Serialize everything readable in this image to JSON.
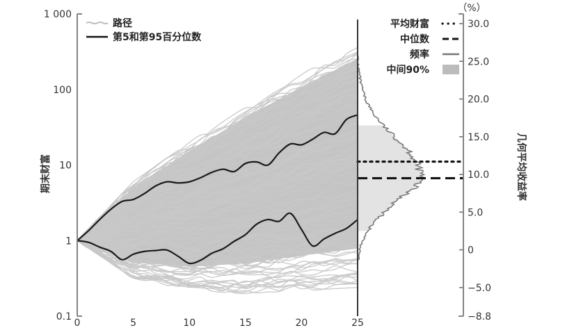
{
  "chart_data": {
    "type": "line",
    "title": "",
    "xlabel": "",
    "ylabel": "期末财富",
    "y2label": "几何平均收益率",
    "y2unit": "（%）",
    "xlim": [
      0,
      25
    ],
    "ylim": [
      0.1,
      1000
    ],
    "yscale": "log",
    "y2lim": [
      -8.8,
      30.0
    ],
    "x_ticks": [
      0,
      5,
      10,
      15,
      20,
      25
    ],
    "y_ticks": [
      {
        "value": 1000,
        "label": "1 000"
      },
      {
        "value": 100,
        "label": "100"
      },
      {
        "value": 10,
        "label": "10"
      },
      {
        "value": 1,
        "label": "1"
      },
      {
        "value": 0.1,
        "label": "0.1"
      }
    ],
    "y2_ticks": [
      {
        "value": 30.0,
        "label": "30.0"
      },
      {
        "value": 25.0,
        "label": "25.0"
      },
      {
        "value": 20.0,
        "label": "20.0"
      },
      {
        "value": 15.0,
        "label": "15.0"
      },
      {
        "value": 10.0,
        "label": "10.0"
      },
      {
        "value": 5.0,
        "label": "5.0"
      },
      {
        "value": 0,
        "label": "0"
      },
      {
        "value": -5.0,
        "label": "−5.0"
      },
      {
        "value": -8.8,
        "label": "−8.8"
      }
    ],
    "legend_left": [
      {
        "label": "路径",
        "style": "thin-gray"
      },
      {
        "label": "第5和第95百分位数",
        "style": "solid-black"
      }
    ],
    "legend_right": [
      {
        "label": "平均财富",
        "style": "dotted"
      },
      {
        "label": "中位数",
        "style": "dashed"
      },
      {
        "label": "频率",
        "style": "gray-line"
      },
      {
        "label": "中间90%",
        "style": "gray-fill"
      }
    ],
    "series": [
      {
        "name": "第95百分位数",
        "x": [
          0,
          1,
          2,
          3,
          4,
          5,
          6,
          7,
          8,
          9,
          10,
          11,
          12,
          13,
          14,
          15,
          16,
          17,
          18,
          19,
          20,
          21,
          22,
          23,
          24,
          25
        ],
        "values": [
          1,
          1.35,
          1.9,
          2.6,
          3.3,
          3.5,
          4.2,
          5.3,
          6.0,
          5.8,
          6.0,
          6.8,
          8.0,
          8.8,
          8.2,
          10.5,
          11.0,
          10.0,
          14.5,
          19,
          18.5,
          22,
          27,
          26,
          40,
          46
        ]
      },
      {
        "name": "第5百分位数",
        "x": [
          0,
          1,
          2,
          3,
          4,
          5,
          6,
          7,
          8,
          9,
          10,
          11,
          12,
          13,
          14,
          15,
          16,
          17,
          18,
          19,
          20,
          21,
          22,
          23,
          24,
          25
        ],
        "values": [
          1,
          0.95,
          0.82,
          0.72,
          0.56,
          0.66,
          0.72,
          0.74,
          0.75,
          0.62,
          0.5,
          0.55,
          0.68,
          0.78,
          0.98,
          1.2,
          1.65,
          1.9,
          1.8,
          2.3,
          1.4,
          0.85,
          1.05,
          1.25,
          1.45,
          1.9
        ]
      },
      {
        "name": "路径上包络",
        "x": [
          0,
          5,
          10,
          15,
          20,
          25
        ],
        "values": [
          1,
          6,
          20,
          60,
          160,
          400
        ]
      },
      {
        "name": "路径下包络",
        "x": [
          0,
          5,
          10,
          15,
          20,
          25
        ],
        "values": [
          1,
          0.32,
          0.22,
          0.2,
          0.22,
          0.24
        ]
      }
    ],
    "distribution": {
      "mean_return_pct": 11.7,
      "median_return_pct": 9.5,
      "middle90_pct": [
        2.5,
        16.5
      ],
      "frequency_profile": [
        {
          "r": 25.0,
          "f": 0.0
        },
        {
          "r": 22.0,
          "f": 0.05
        },
        {
          "r": 20.0,
          "f": 0.12
        },
        {
          "r": 18.0,
          "f": 0.25
        },
        {
          "r": 16.0,
          "f": 0.45
        },
        {
          "r": 14.0,
          "f": 0.7
        },
        {
          "r": 13.0,
          "f": 0.82
        },
        {
          "r": 12.0,
          "f": 0.88
        },
        {
          "r": 11.0,
          "f": 0.95
        },
        {
          "r": 10.0,
          "f": 1.0
        },
        {
          "r": 9.0,
          "f": 0.96
        },
        {
          "r": 8.0,
          "f": 0.85
        },
        {
          "r": 7.0,
          "f": 0.68
        },
        {
          "r": 6.0,
          "f": 0.55
        },
        {
          "r": 5.0,
          "f": 0.42
        },
        {
          "r": 4.0,
          "f": 0.3
        },
        {
          "r": 3.0,
          "f": 0.2
        },
        {
          "r": 2.0,
          "f": 0.12
        },
        {
          "r": 1.0,
          "f": 0.07
        },
        {
          "r": 0.0,
          "f": 0.03
        },
        {
          "r": -2.0,
          "f": 0.0
        }
      ]
    }
  }
}
